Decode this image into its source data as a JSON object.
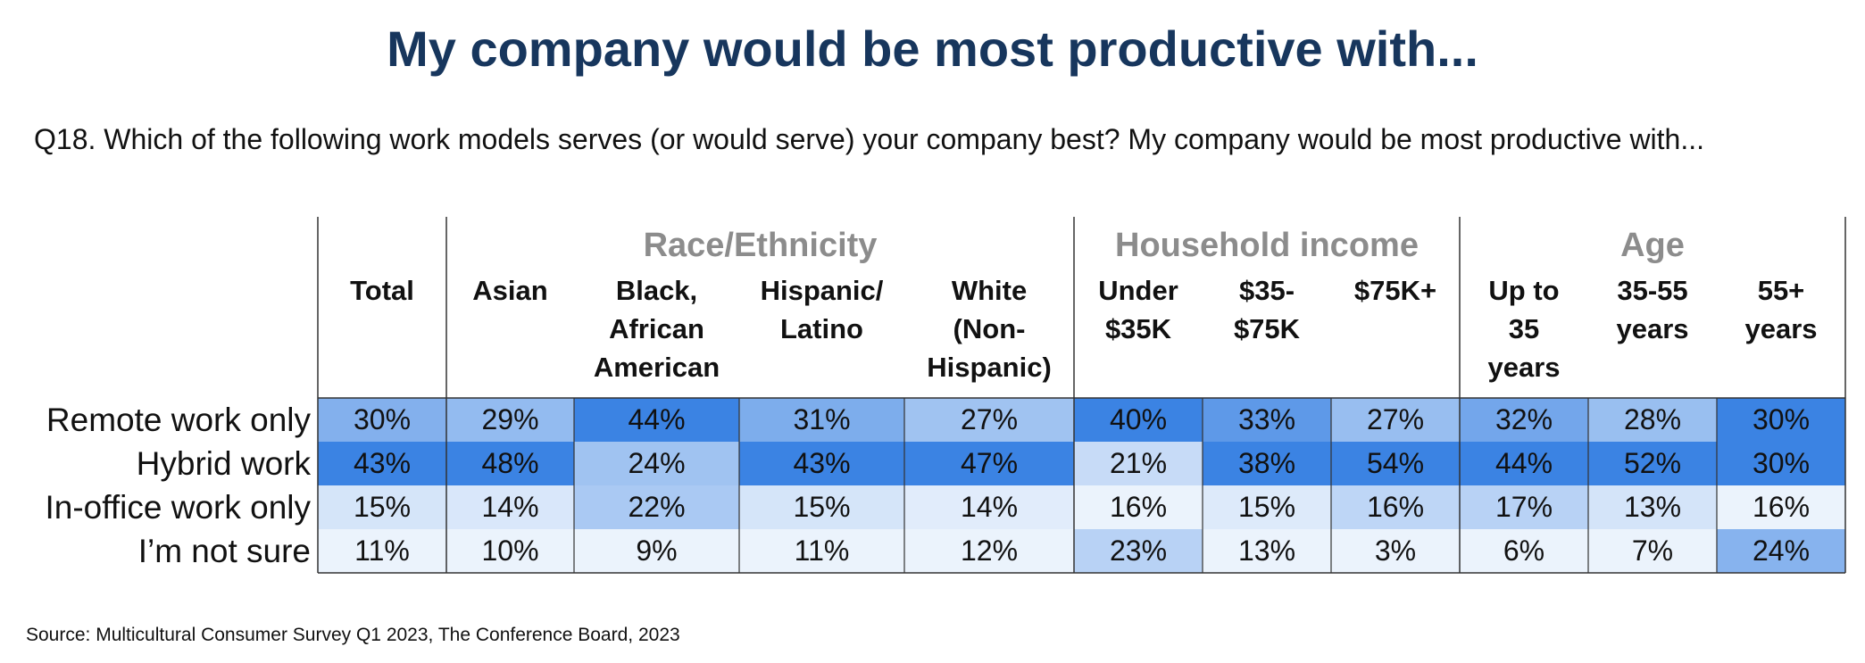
{
  "title": "My company would be most productive with...",
  "subtitle": "Q18. Which of the following work models serves (or would serve) your company best? My company would be most productive with...",
  "source": "Source: Multicultural Consumer Survey Q1 2023, The Conference Board, 2023",
  "colors": {
    "title": "#17365d",
    "group_header": "#8c8c8c",
    "heat_low": "#ffffff",
    "heat_high": "#3b83e3",
    "grid": "#333333"
  },
  "chart_data": {
    "type": "heatmap",
    "groups": [
      {
        "label": "",
        "columns": [
          "Total"
        ]
      },
      {
        "label": "Race/Ethnicity",
        "columns": [
          "Asian",
          "Black, African American",
          "Hispanic/ Latino",
          "White (Non- Hispanic)"
        ]
      },
      {
        "label": "Household income",
        "columns": [
          "Under $35K",
          "$35- $75K",
          "$75K+"
        ]
      },
      {
        "label": "Age",
        "columns": [
          "Up to 35 years",
          "35-55 years",
          "55+ years"
        ]
      }
    ],
    "column_label_lines": [
      [
        "Total"
      ],
      [
        "Asian"
      ],
      [
        "Black,",
        "African",
        "American"
      ],
      [
        "Hispanic/",
        "Latino"
      ],
      [
        "White",
        "(Non-",
        "Hispanic)"
      ],
      [
        "Under",
        "$35K"
      ],
      [
        "$35-",
        "$75K"
      ],
      [
        "$75K+"
      ],
      [
        "Up to",
        "35",
        "years"
      ],
      [
        "35-55",
        "years"
      ],
      [
        "55+",
        "years"
      ]
    ],
    "rows": [
      "Remote work only",
      "Hybrid work",
      "In-office work only",
      "I’m not sure"
    ],
    "values": [
      [
        30,
        29,
        44,
        31,
        27,
        40,
        33,
        27,
        32,
        28,
        30
      ],
      [
        43,
        48,
        24,
        43,
        47,
        21,
        38,
        54,
        44,
        52,
        30
      ],
      [
        15,
        14,
        22,
        15,
        14,
        16,
        15,
        16,
        17,
        13,
        16
      ],
      [
        11,
        10,
        9,
        11,
        12,
        23,
        13,
        3,
        6,
        7,
        24
      ]
    ],
    "value_suffix": "%",
    "shading": "per-column (darker = higher within column)"
  }
}
